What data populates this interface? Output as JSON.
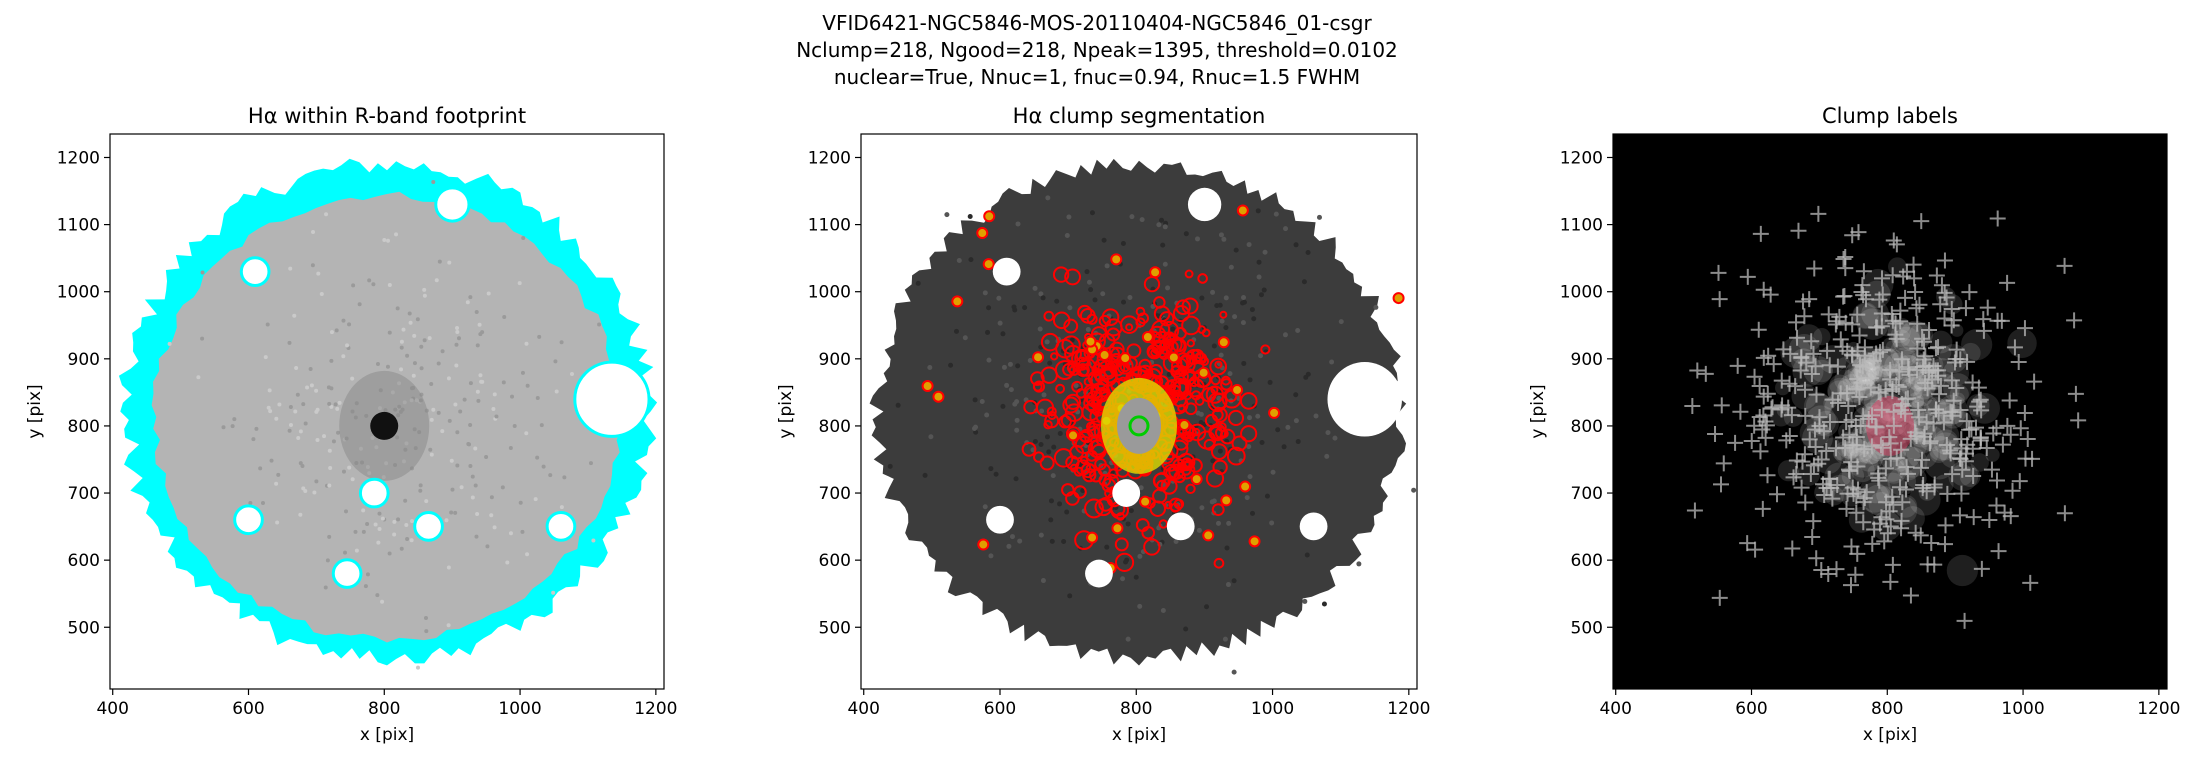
{
  "suptitle": [
    "VFID6421-NGC5846-MOS-20110404-NGC5846_01-csgr",
    "Nclump=218, Ngood=218, Npeak=1395, threshold=0.0102",
    "nuclear=True, Nnuc=1, fnuc=0.94, Rnuc=1.5 FWHM"
  ],
  "chart_data": [
    {
      "type": "image",
      "title": "Hα within R-band footprint",
      "xlabel": "x [pix]",
      "ylabel": "y [pix]",
      "xlim": [
        396,
        1212
      ],
      "ylim": [
        408,
        1235
      ],
      "xticks": [
        400,
        600,
        800,
        1000,
        1200
      ],
      "yticks": [
        500,
        600,
        700,
        800,
        900,
        1000,
        1100,
        1200
      ]
    },
    {
      "type": "image",
      "title": "Hα clump segmentation",
      "xlabel": "x [pix]",
      "ylabel": "y [pix]",
      "xlim": [
        396,
        1212
      ],
      "ylim": [
        408,
        1235
      ],
      "xticks": [
        400,
        600,
        800,
        1000,
        1200
      ],
      "yticks": [
        500,
        600,
        700,
        800,
        900,
        1000,
        1100,
        1200
      ]
    },
    {
      "type": "image",
      "title": "Clump labels",
      "xlabel": "x [pix]",
      "ylabel": "y [pix]",
      "xlim": [
        396,
        1212
      ],
      "ylim": [
        408,
        1235
      ],
      "xticks": [
        400,
        600,
        800,
        1000,
        1200
      ],
      "yticks": [
        500,
        600,
        700,
        800,
        900,
        1000,
        1100,
        1200
      ]
    }
  ]
}
